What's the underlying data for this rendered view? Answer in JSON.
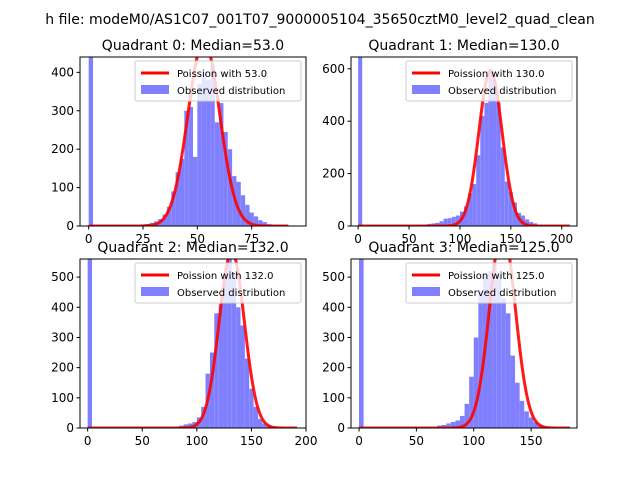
{
  "suptitle": "h file: modeM0/AS1C07_001T07_9000005104_35650cztM0_level2_quad_clean",
  "colors": {
    "hist": "#8080ff",
    "fit": "#ff0000",
    "frame": "#000000"
  },
  "chart_data": [
    {
      "type": "bar+line",
      "title": "Quadrant 0: Median=53.0",
      "median": 53.0,
      "xlim": [
        -4,
        100
      ],
      "ylim": [
        0,
        440
      ],
      "xticks": [
        0,
        25,
        50,
        75
      ],
      "xtick_labels": [
        "0",
        "25",
        "50",
        "75"
      ],
      "yticks": [
        0,
        100,
        200,
        300,
        400
      ],
      "ytick_labels": [
        "0",
        "100",
        "200",
        "300",
        "400"
      ],
      "legend": [
        "Poission with 53.0",
        "Observed distribution"
      ],
      "fit_label": "Poission with 53.0",
      "hist_label": "Observed distribution",
      "bin_edges": [
        0,
        2,
        4,
        6,
        8,
        10,
        12,
        14,
        16,
        18,
        20,
        22,
        24,
        26,
        28,
        30,
        32,
        34,
        36,
        38,
        40,
        42,
        44,
        46,
        48,
        50,
        52,
        54,
        56,
        58,
        60,
        62,
        64,
        66,
        68,
        70,
        72,
        74,
        76,
        78,
        80,
        82,
        84,
        86,
        88,
        90,
        92
      ],
      "counts": [
        440,
        0,
        0,
        0,
        0,
        0,
        0,
        0,
        0,
        0,
        0,
        0,
        2,
        5,
        8,
        12,
        18,
        30,
        50,
        90,
        140,
        175,
        300,
        310,
        180,
        370,
        400,
        380,
        420,
        270,
        320,
        245,
        200,
        130,
        115,
        80,
        55,
        35,
        25,
        15,
        10,
        5,
        3,
        2,
        1,
        0
      ]
    },
    {
      "type": "bar+line",
      "title": "Quadrant 1: Median=130.0",
      "median": 130.0,
      "xlim": [
        -7,
        215
      ],
      "ylim": [
        0,
        645
      ],
      "xticks": [
        0,
        50,
        100,
        150,
        200
      ],
      "xtick_labels": [
        "0",
        "50",
        "100",
        "150",
        "200"
      ],
      "yticks": [
        0,
        200,
        400,
        600
      ],
      "ytick_labels": [
        "0",
        "200",
        "400",
        "600"
      ],
      "legend": [
        "Poission with 130.0",
        "Observed distribution"
      ],
      "fit_label": "Poission with 130.0",
      "hist_label": "Observed distribution",
      "bin_edges": [
        0,
        4,
        8,
        12,
        16,
        20,
        24,
        28,
        32,
        36,
        40,
        44,
        48,
        52,
        56,
        60,
        64,
        68,
        72,
        76,
        80,
        84,
        88,
        92,
        96,
        100,
        104,
        108,
        112,
        116,
        120,
        124,
        128,
        132,
        136,
        140,
        144,
        148,
        152,
        156,
        160,
        164,
        168,
        172,
        176,
        180,
        184,
        188,
        192,
        196,
        200,
        204,
        208
      ],
      "counts": [
        645,
        0,
        0,
        0,
        0,
        0,
        0,
        0,
        0,
        0,
        0,
        0,
        0,
        0,
        0,
        0,
        5,
        8,
        10,
        12,
        18,
        28,
        30,
        35,
        40,
        55,
        75,
        125,
        160,
        270,
        420,
        470,
        600,
        560,
        470,
        300,
        170,
        130,
        90,
        50,
        40,
        25,
        15,
        10,
        5,
        3,
        2,
        1,
        1,
        0,
        0,
        0
      ]
    },
    {
      "type": "bar+line",
      "title": "Quadrant 2: Median=132.0",
      "median": 132.0,
      "xlim": [
        -7,
        200
      ],
      "ylim": [
        0,
        560
      ],
      "xticks": [
        0,
        50,
        100,
        150,
        200
      ],
      "xtick_labels": [
        "0",
        "50",
        "100",
        "150",
        "200"
      ],
      "yticks": [
        0,
        100,
        200,
        300,
        400,
        500
      ],
      "ytick_labels": [
        "0",
        "100",
        "200",
        "300",
        "400",
        "500"
      ],
      "legend": [
        "Poission with 132.0",
        "Observed distribution"
      ],
      "fit_label": "Poission with 132.0",
      "hist_label": "Observed distribution",
      "bin_edges": [
        0,
        4,
        8,
        12,
        16,
        20,
        24,
        28,
        32,
        36,
        40,
        44,
        48,
        52,
        56,
        60,
        64,
        68,
        72,
        76,
        80,
        84,
        88,
        92,
        96,
        100,
        104,
        108,
        112,
        116,
        120,
        124,
        128,
        132,
        136,
        140,
        144,
        148,
        152,
        156,
        160,
        164,
        168,
        172,
        176,
        180,
        184,
        188,
        192
      ],
      "counts": [
        560,
        0,
        0,
        0,
        0,
        0,
        0,
        0,
        0,
        0,
        0,
        0,
        0,
        0,
        0,
        0,
        0,
        0,
        0,
        2,
        5,
        8,
        12,
        15,
        20,
        35,
        70,
        180,
        250,
        380,
        410,
        510,
        560,
        515,
        400,
        340,
        230,
        130,
        70,
        30,
        15,
        10,
        5,
        3,
        2,
        1,
        0,
        0
      ]
    },
    {
      "type": "bar+line",
      "title": "Quadrant 3: Median=125.0",
      "median": 125.0,
      "xlim": [
        -7,
        190
      ],
      "ylim": [
        0,
        560
      ],
      "xticks": [
        0,
        50,
        100,
        150
      ],
      "xtick_labels": [
        "0",
        "50",
        "100",
        "150"
      ],
      "yticks": [
        0,
        100,
        200,
        300,
        400,
        500
      ],
      "ytick_labels": [
        "0",
        "100",
        "200",
        "300",
        "400",
        "500"
      ],
      "legend": [
        "Poission with 125.0",
        "Observed distribution"
      ],
      "fit_label": "Poission with 125.0",
      "hist_label": "Observed distribution",
      "bin_edges": [
        0,
        4,
        8,
        12,
        16,
        20,
        24,
        28,
        32,
        36,
        40,
        44,
        48,
        52,
        56,
        60,
        64,
        68,
        72,
        76,
        80,
        84,
        88,
        92,
        96,
        100,
        104,
        108,
        112,
        116,
        120,
        124,
        128,
        132,
        136,
        140,
        144,
        148,
        152,
        156,
        160,
        164,
        168,
        172,
        176,
        180,
        184
      ],
      "counts": [
        560,
        0,
        0,
        0,
        0,
        0,
        0,
        0,
        0,
        0,
        0,
        0,
        0,
        0,
        0,
        0,
        0,
        8,
        10,
        15,
        20,
        25,
        40,
        80,
        170,
        300,
        450,
        505,
        520,
        545,
        510,
        430,
        380,
        240,
        150,
        90,
        55,
        35,
        20,
        10,
        5,
        3,
        2,
        1,
        0,
        0
      ]
    }
  ]
}
